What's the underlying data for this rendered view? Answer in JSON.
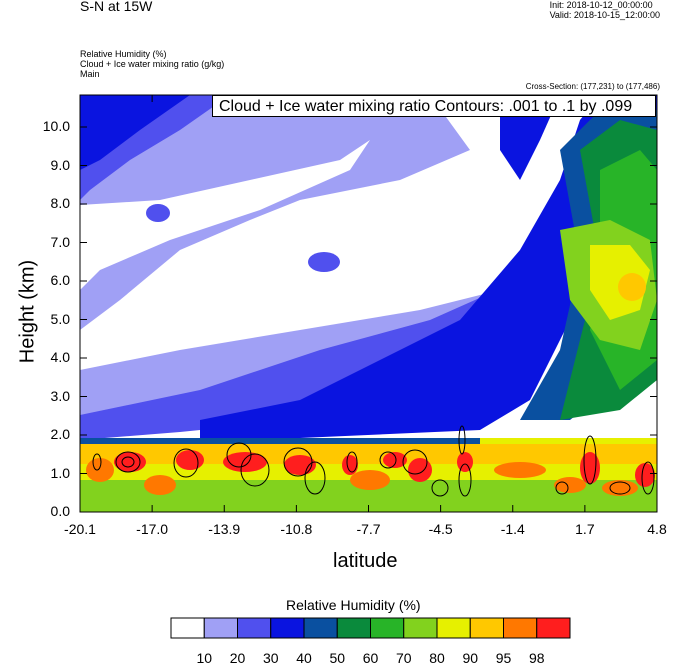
{
  "header": {
    "title": "S-N at 15W",
    "init": "Init: 2018-10-12_00:00:00",
    "valid": "Valid: 2018-10-15_12:00:00",
    "field1": "Relative Humidity   (%)",
    "field2": "Cloud + Ice water mixing ratio   (g/kg)",
    "field3": "Main",
    "cross_section": "Cross-Section: (177,231) to (177,486)",
    "contour_label": "Cloud + Ice water mixing ratio Contours: .001 to .1 by .099"
  },
  "chart_data": {
    "type": "heatmap",
    "xlabel": "latitude",
    "ylabel": "Height (km)",
    "xlim": [
      -20.1,
      4.8
    ],
    "ylim": [
      0.0,
      10.8
    ],
    "xticks": [
      "-20.1",
      "-17.0",
      "-13.9",
      "-10.8",
      "-7.7",
      "-4.5",
      "-1.4",
      "1.7",
      "4.8"
    ],
    "yticks": [
      "0.0",
      "1.0",
      "2.0",
      "3.0",
      "4.0",
      "5.0",
      "6.0",
      "7.0",
      "8.0",
      "9.0",
      "10.0"
    ],
    "colorbar": {
      "title": "Relative Humidity  (%)",
      "levels": [
        "10",
        "20",
        "30",
        "40",
        "50",
        "60",
        "70",
        "80",
        "90",
        "95",
        "98"
      ],
      "colors": [
        "#ffffff",
        "#a0a0f5",
        "#5050ee",
        "#0a14e0",
        "#0a50a0",
        "#0a8a3c",
        "#28b428",
        "#82d21e",
        "#e6f000",
        "#ffc800",
        "#ff7800",
        "#ff1e1e"
      ]
    }
  }
}
